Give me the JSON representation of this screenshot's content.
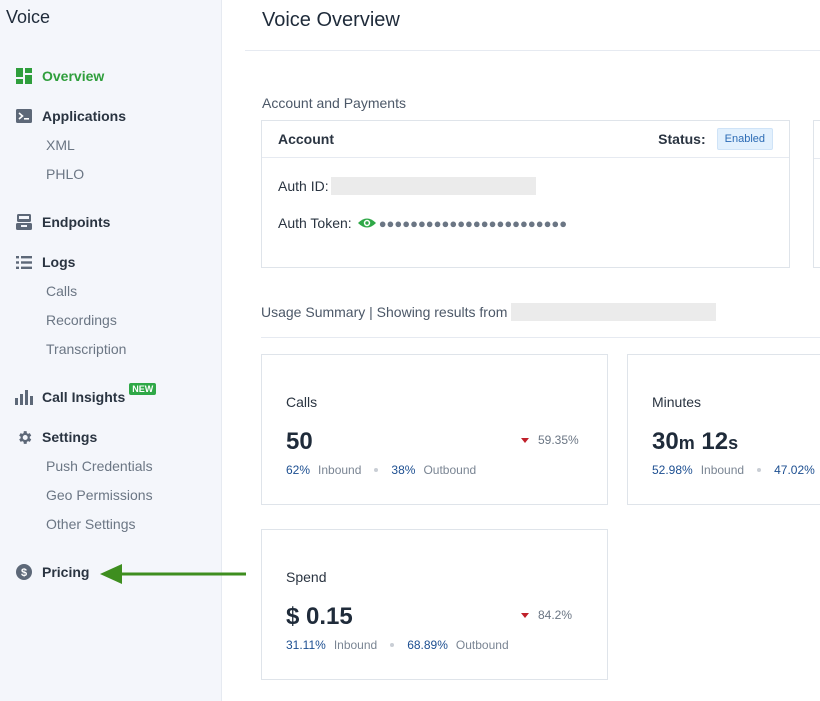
{
  "sidebar": {
    "title": "Voice",
    "items": {
      "overview": "Overview",
      "applications": "Applications",
      "xml": "XML",
      "phlo": "PHLO",
      "endpoints": "Endpoints",
      "logs": "Logs",
      "calls": "Calls",
      "recordings": "Recordings",
      "transcription": "Transcription",
      "call_insights": "Call Insights",
      "call_insights_badge": "NEW",
      "settings": "Settings",
      "push_credentials": "Push Credentials",
      "geo_permissions": "Geo Permissions",
      "other_settings": "Other Settings",
      "pricing": "Pricing"
    },
    "accent_color": "#2f9e3c"
  },
  "main": {
    "title": "Voice Overview",
    "account_section_label": "Account and Payments",
    "account_card": {
      "title": "Account",
      "status_label": "Status:",
      "status_value": "Enabled",
      "auth_id_label": "Auth ID:",
      "auth_token_label": "Auth Token:",
      "auth_token_masked": "●●●●●●●●●●●●●●●●●●●●●●●●"
    },
    "usage_label": "Usage Summary | Showing results from",
    "stats": {
      "calls": {
        "title": "Calls",
        "value": "50",
        "delta": "59.35%",
        "inbound_pct": "62%",
        "inbound_label": "Inbound",
        "outbound_pct": "38%",
        "outbound_label": "Outbound"
      },
      "minutes": {
        "title": "Minutes",
        "value_min": "30",
        "unit_min": "m",
        "value_sec": "12",
        "unit_sec": "s",
        "inbound_pct": "52.98%",
        "inbound_label": "Inbound",
        "outbound_pct": "47.02%"
      },
      "spend": {
        "title": "Spend",
        "value": "$ 0.15",
        "delta": "84.2%",
        "inbound_pct": "31.11%",
        "inbound_label": "Inbound",
        "outbound_pct": "68.89%",
        "outbound_label": "Outbound"
      }
    }
  }
}
